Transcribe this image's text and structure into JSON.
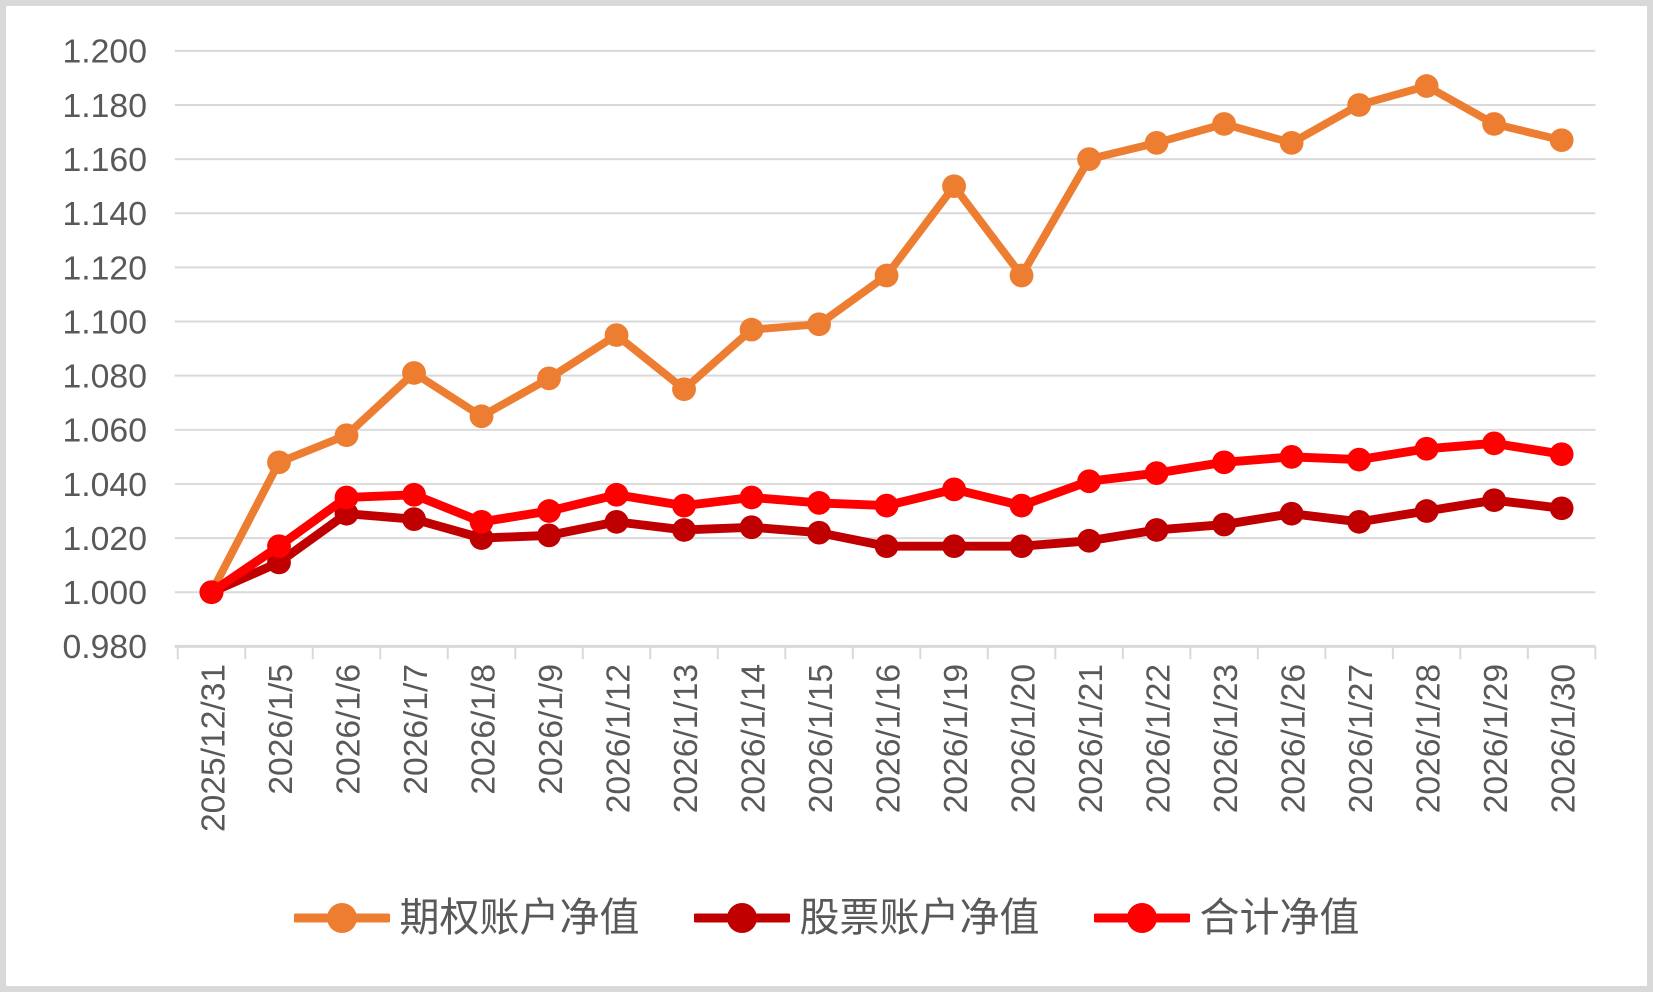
{
  "chart_data": {
    "type": "line",
    "title": "",
    "xlabel": "",
    "ylabel": "",
    "categories": [
      "2025/12/31",
      "2026/1/5",
      "2026/1/6",
      "2026/1/7",
      "2026/1/8",
      "2026/1/9",
      "2026/1/12",
      "2026/1/13",
      "2026/1/14",
      "2026/1/15",
      "2026/1/16",
      "2026/1/19",
      "2026/1/20",
      "2026/1/21",
      "2026/1/22",
      "2026/1/23",
      "2026/1/26",
      "2026/1/27",
      "2026/1/28",
      "2026/1/29",
      "2026/1/30"
    ],
    "series": [
      {
        "name": "期权账户净值",
        "color": "#ED7D31",
        "line_width": 8,
        "values": [
          1.0,
          1.048,
          1.058,
          1.081,
          1.065,
          1.079,
          1.095,
          1.075,
          1.097,
          1.099,
          1.117,
          1.15,
          1.117,
          1.16,
          1.166,
          1.173,
          1.166,
          1.18,
          1.187,
          1.173,
          1.167
        ]
      },
      {
        "name": "股票账户净值",
        "color": "#C00000",
        "line_width": 9,
        "values": [
          1.0,
          1.011,
          1.029,
          1.027,
          1.02,
          1.021,
          1.026,
          1.023,
          1.024,
          1.022,
          1.017,
          1.017,
          1.017,
          1.019,
          1.023,
          1.025,
          1.029,
          1.026,
          1.03,
          1.034,
          1.031
        ]
      },
      {
        "name": "合计净值",
        "color": "#FF0000",
        "line_width": 9,
        "values": [
          1.0,
          1.017,
          1.035,
          1.036,
          1.026,
          1.03,
          1.036,
          1.032,
          1.035,
          1.033,
          1.032,
          1.038,
          1.032,
          1.041,
          1.044,
          1.048,
          1.05,
          1.049,
          1.053,
          1.055,
          1.051
        ]
      }
    ],
    "y_axis": {
      "min": 0.98,
      "max": 1.2,
      "step": 0.02,
      "tick_labels": [
        "1.200",
        "1.180",
        "1.160",
        "1.140",
        "1.120",
        "1.100",
        "1.080",
        "1.060",
        "1.040",
        "1.020",
        "1.000",
        "0.980"
      ],
      "text_color": "#595959",
      "font_size": 34
    },
    "x_axis": {
      "label_rotation": -90,
      "text_color": "#595959",
      "font_size": 34
    },
    "grid": {
      "on": true,
      "color": "#D9D9D9"
    },
    "legend": {
      "position": "bottom",
      "marker": "line-with-dot"
    }
  },
  "frame": {
    "background": "#FFFFFF",
    "border_color": "#D9D9D9"
  }
}
